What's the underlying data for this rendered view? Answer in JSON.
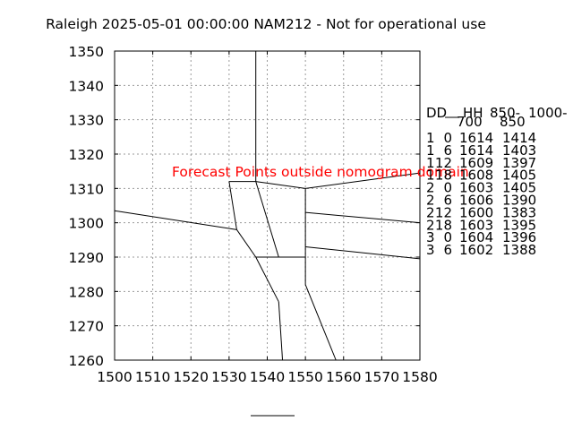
{
  "chart_data": {
    "type": "line",
    "title": "Raleigh 2025-05-01 00:00:00 NAM212 - Not for operational use",
    "xlim": [
      1500,
      1580
    ],
    "ylim": [
      1260,
      1350
    ],
    "xticks": [
      "1500",
      "1510",
      "1520",
      "1530",
      "1540",
      "1550",
      "1560",
      "1570",
      "1580"
    ],
    "yticks": [
      "1260",
      "1270",
      "1280",
      "1290",
      "1300",
      "1310",
      "1320",
      "1330",
      "1340",
      "1350"
    ],
    "grid": true,
    "annotation": "Forecast Points outside nomogram domain",
    "annotation_color": "#ff0000",
    "table": {
      "header": [
        "DD",
        "HH",
        "850-",
        "1000-"
      ],
      "subheader": [
        "",
        "",
        "700",
        "850"
      ],
      "rows": [
        [
          "1",
          "0",
          "1614",
          "1414"
        ],
        [
          "1",
          "6",
          "1614",
          "1403"
        ],
        [
          "1",
          "12",
          "1609",
          "1397"
        ],
        [
          "1",
          "18",
          "1608",
          "1405"
        ],
        [
          "2",
          "0",
          "1603",
          "1405"
        ],
        [
          "2",
          "6",
          "1606",
          "1390"
        ],
        [
          "2",
          "12",
          "1600",
          "1383"
        ],
        [
          "2",
          "18",
          "1603",
          "1395"
        ],
        [
          "3",
          "0",
          "1604",
          "1396"
        ],
        [
          "3",
          "6",
          "1602",
          "1388"
        ]
      ]
    },
    "boundaries": [
      [
        [
          1537,
          1350
        ],
        [
          1537,
          1312
        ]
      ],
      [
        [
          1530,
          1312
        ],
        [
          1537,
          1312
        ]
      ],
      [
        [
          1537,
          1312
        ],
        [
          1550,
          1310
        ]
      ],
      [
        [
          1550,
          1310
        ],
        [
          1580,
          1314.5
        ]
      ],
      [
        [
          1530,
          1312
        ],
        [
          1532,
          1298
        ]
      ],
      [
        [
          1500,
          1303.5
        ],
        [
          1532,
          1298
        ]
      ],
      [
        [
          1532,
          1298
        ],
        [
          1537,
          1290
        ]
      ],
      [
        [
          1537,
          1312
        ],
        [
          1543,
          1290
        ]
      ],
      [
        [
          1550,
          1310
        ],
        [
          1550,
          1282
        ]
      ],
      [
        [
          1537,
          1290
        ],
        [
          1550,
          1290
        ]
      ],
      [
        [
          1550,
          1303
        ],
        [
          1580,
          1300
        ]
      ],
      [
        [
          1550,
          1293
        ],
        [
          1580,
          1289.5
        ]
      ],
      [
        [
          1537,
          1290
        ],
        [
          1543,
          1277
        ]
      ],
      [
        [
          1543,
          1277
        ],
        [
          1544,
          1260
        ]
      ],
      [
        [
          1550,
          1282
        ],
        [
          1558,
          1260
        ]
      ]
    ]
  }
}
